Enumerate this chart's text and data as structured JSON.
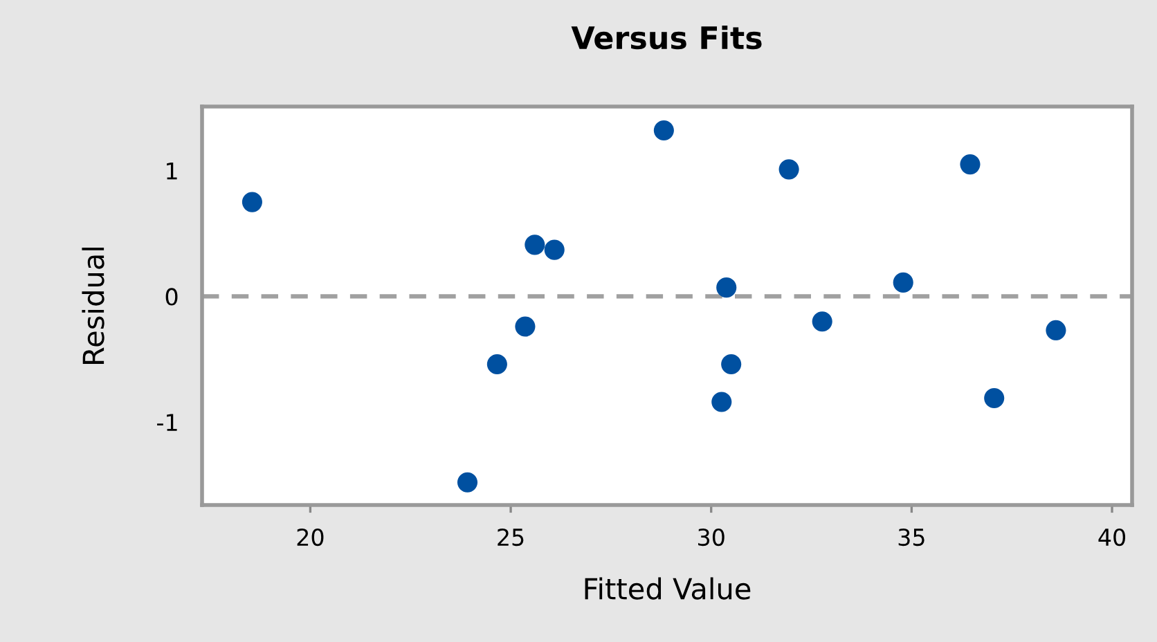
{
  "chart_data": {
    "type": "scatter",
    "title": "Versus Fits",
    "xlabel": "Fitted Value",
    "ylabel": "Residual",
    "x": [
      18.55,
      23.92,
      24.66,
      25.36,
      25.6,
      26.09,
      28.82,
      30.38,
      30.5,
      30.26,
      31.94,
      32.77,
      34.79,
      36.46,
      37.06,
      38.6
    ],
    "series": [
      {
        "color": "#0050a0",
        "values": [
          0.75,
          -1.48,
          -0.54,
          -0.24,
          0.41,
          0.37,
          1.32,
          0.07,
          -0.54,
          -0.84,
          1.01,
          -0.2,
          0.11,
          1.05,
          -0.81,
          -0.27
        ]
      }
    ],
    "xlim": [
      17.3,
      40.5
    ],
    "ylim": [
      -1.66,
      1.51
    ],
    "xticks": [
      20,
      25,
      30,
      35,
      40
    ],
    "yticks": [
      -1,
      0,
      1
    ],
    "ref_lines": [
      {
        "axis": "y",
        "value": 0,
        "color": "#a0a0a0",
        "line_style": "dashed"
      }
    ],
    "marker": "circle"
  }
}
